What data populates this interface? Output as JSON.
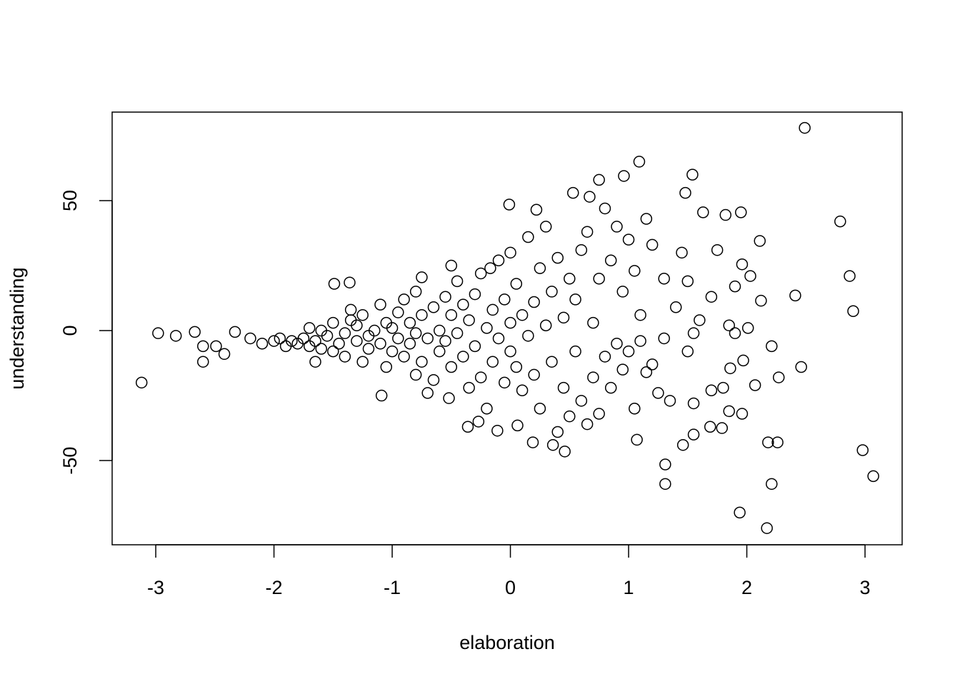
{
  "chart_data": {
    "type": "scatter",
    "x_label": "elaboration",
    "y_label": "understanding",
    "x": [
      -3.12,
      -2.98,
      -2.83,
      -2.67,
      -2.6,
      -2.6,
      -2.49,
      -2.42,
      -2.33,
      2.49,
      2.79,
      2.87,
      2.9,
      2.41,
      2.46,
      2.98,
      3.07,
      2.17,
      1.94,
      2.21,
      2.18,
      2.26,
      2.27,
      2.21,
      2.11,
      2.12,
      1.95,
      1.82,
      1.09,
      0.96,
      1.54,
      1.48,
      0.53,
      0.75,
      0.67,
      -0.01,
      0.22,
      1.63,
      1.31,
      1.31,
      1.46,
      0.46,
      0.19,
      0.36,
      1.07,
      -0.36,
      -0.27,
      -0.11,
      0.06,
      2.07,
      1.96,
      1.85,
      1.79,
      1.69,
      1.86,
      1.97,
      2.01,
      2.03,
      1.96,
      1.9,
      -1.09,
      -1.65,
      -1.49,
      -1.36,
      -0.75,
      -0.5,
      -0.17,
      -2.2,
      -2.1,
      -2.0,
      -1.95,
      -1.9,
      -1.85,
      -1.8,
      -1.75,
      -1.7,
      -1.7,
      -1.65,
      -1.6,
      -1.6,
      -1.55,
      -1.5,
      -1.5,
      -1.45,
      -1.4,
      -1.4,
      -1.35,
      -1.35,
      -1.3,
      -1.3,
      -1.25,
      -1.25,
      -1.2,
      -1.2,
      -1.15,
      -1.1,
      -1.1,
      -1.05,
      -1.05,
      -1.0,
      -1.0,
      -0.95,
      -0.95,
      -0.9,
      -0.9,
      -0.85,
      -0.85,
      -0.8,
      -0.8,
      -0.8,
      -0.75,
      -0.75,
      -0.7,
      -0.7,
      -0.65,
      -0.65,
      -0.6,
      -0.6,
      -0.55,
      -0.55,
      -0.52,
      -0.5,
      -0.5,
      -0.45,
      -0.45,
      -0.4,
      -0.4,
      -0.35,
      -0.35,
      -0.3,
      -0.3,
      -0.25,
      -0.25,
      -0.2,
      -0.2,
      -0.15,
      -0.15,
      -0.1,
      -0.1,
      -0.05,
      -0.05,
      0,
      0,
      0,
      0.05,
      0.05,
      0.1,
      0.1,
      0.15,
      0.15,
      0.2,
      0.2,
      0.25,
      0.25,
      0.3,
      0.3,
      0.35,
      0.35,
      0.4,
      0.4,
      0.45,
      0.45,
      0.5,
      0.5,
      0.55,
      0.55,
      0.6,
      0.6,
      0.65,
      0.65,
      0.7,
      0.7,
      0.75,
      0.75,
      0.8,
      0.8,
      0.85,
      0.85,
      0.9,
      0.9,
      0.95,
      0.95,
      1.0,
      1.0,
      1.05,
      1.05,
      1.1,
      1.1,
      1.15,
      1.15,
      1.2,
      1.2,
      1.25,
      1.3,
      1.3,
      1.35,
      1.4,
      1.45,
      1.5,
      1.5,
      1.55,
      1.55,
      1.55,
      1.6,
      1.7,
      1.7,
      1.75,
      1.8,
      1.85,
      1.9
    ],
    "values": [
      -20,
      -1,
      -2,
      -0.5,
      -6,
      -12,
      -6,
      -9,
      -0.5,
      78,
      42,
      21,
      7.5,
      13.5,
      -14,
      -46,
      -56,
      -76,
      -70,
      -59,
      -43,
      -43,
      -18,
      -6,
      34.5,
      11.5,
      45.5,
      44.5,
      65,
      59.5,
      60,
      53,
      53,
      58,
      51.5,
      48.5,
      46.5,
      45.5,
      -59,
      -51.5,
      -44,
      -46.5,
      -43,
      -44,
      -42,
      -37,
      -35,
      -38.5,
      -36.5,
      -21,
      -32,
      -31,
      -37.5,
      -37,
      -14.5,
      -11.5,
      1,
      21,
      25.5,
      17,
      -25,
      -12,
      18,
      18.5,
      20.5,
      25,
      24,
      -3,
      -5,
      -4,
      -3,
      -6,
      -4,
      -5,
      -3,
      -6,
      1,
      -4,
      -7,
      0,
      -2,
      3,
      -8,
      -5,
      -1,
      -10,
      4,
      8,
      -4,
      2,
      -12,
      6,
      -2,
      -7,
      0,
      -5,
      10,
      -14,
      3,
      -8,
      1,
      -3,
      7,
      -10,
      12,
      -5,
      3,
      -17,
      -1,
      15,
      6,
      -12,
      -24,
      -3,
      9,
      -19,
      0,
      -8,
      13,
      -4,
      -26,
      6,
      -14,
      -1,
      19,
      10,
      -10,
      -22,
      4,
      14,
      -6,
      22,
      -18,
      1,
      -30,
      8,
      -12,
      27,
      -3,
      12,
      -20,
      3,
      -8,
      30,
      -14,
      18,
      -23,
      6,
      -2,
      36,
      11,
      -17,
      -30,
      24,
      2,
      40,
      -12,
      15,
      -39,
      28,
      5,
      -22,
      -33,
      20,
      -8,
      12,
      31,
      -27,
      -36,
      38,
      3,
      -18,
      20,
      -32,
      -10,
      47,
      27,
      -22,
      -5,
      40,
      -15,
      15,
      -8,
      35,
      23,
      -30,
      -4,
      6,
      -16,
      43,
      -13,
      33,
      -24,
      -3,
      20,
      -27,
      9,
      30,
      -8,
      19,
      -1,
      -28,
      -40,
      4,
      -23,
      13,
      31,
      -22,
      2,
      -1
    ],
    "xlim": [
      -3.369,
      3.314
    ],
    "ylim": [
      -82.4,
      84.07
    ],
    "xticks": [
      -3,
      -2,
      -1,
      0,
      1,
      2,
      3
    ],
    "yticks": [
      -50,
      0,
      50
    ]
  }
}
